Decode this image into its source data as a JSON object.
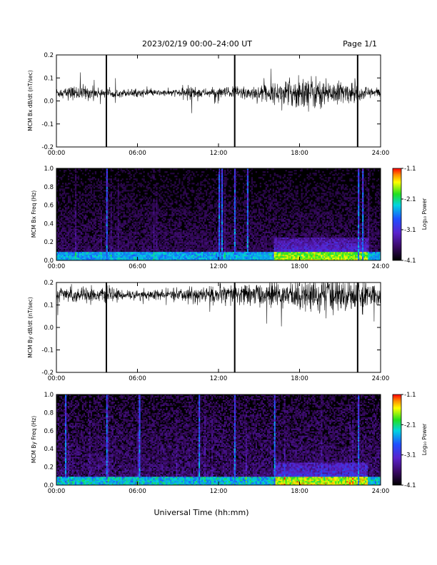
{
  "header": {
    "title": "2023/02/19  00:00–24:00 UT",
    "page": "Page 1/1"
  },
  "x_axis_title": "Universal Time (hh:mm)",
  "colorbar": {
    "label": "Log₁₀ Power",
    "ticks": [
      "-1.1",
      "-2.1",
      "-3.1",
      "-4.1"
    ],
    "range": [
      -4.1,
      -1.1
    ]
  },
  "chart_data": [
    {
      "type": "line",
      "ylabel": "MCM Bx dB/dt (nT/sec)",
      "x_ticks": [
        "00:00",
        "06:00",
        "12:00",
        "18:00",
        "24:00"
      ],
      "y_ticks": [
        "0.2",
        "0.1",
        "0.0",
        "-0.1",
        "-0.2"
      ],
      "xlim": [
        0,
        24
      ],
      "ylim": [
        -0.2,
        0.2
      ],
      "baseline": 0.035,
      "spikes_hours": [
        3.7,
        13.2,
        22.3
      ],
      "activity": [
        {
          "hour": 0,
          "amplitude": 0.02
        },
        {
          "hour": 1,
          "amplitude": 0.025
        },
        {
          "hour": 2,
          "amplitude": 0.03
        },
        {
          "hour": 3,
          "amplitude": 0.02
        },
        {
          "hour": 4,
          "amplitude": 0.015
        },
        {
          "hour": 5,
          "amplitude": 0.015
        },
        {
          "hour": 6,
          "amplitude": 0.015
        },
        {
          "hour": 7,
          "amplitude": 0.012
        },
        {
          "hour": 8,
          "amplitude": 0.012
        },
        {
          "hour": 9,
          "amplitude": 0.015
        },
        {
          "hour": 10,
          "amplitude": 0.03
        },
        {
          "hour": 11,
          "amplitude": 0.015
        },
        {
          "hour": 12,
          "amplitude": 0.02
        },
        {
          "hour": 13,
          "amplitude": 0.025
        },
        {
          "hour": 14,
          "amplitude": 0.03
        },
        {
          "hour": 15,
          "amplitude": 0.03
        },
        {
          "hour": 16,
          "amplitude": 0.035
        },
        {
          "hour": 17,
          "amplitude": 0.045
        },
        {
          "hour": 18,
          "amplitude": 0.07
        },
        {
          "hour": 19,
          "amplitude": 0.065
        },
        {
          "hour": 20,
          "amplitude": 0.05
        },
        {
          "hour": 21,
          "amplitude": 0.045
        },
        {
          "hour": 22,
          "amplitude": 0.035
        },
        {
          "hour": 23,
          "amplitude": 0.025
        },
        {
          "hour": 24,
          "amplitude": 0.02
        }
      ]
    },
    {
      "type": "heatmap",
      "ylabel": "MCM Bx Freq (Hz)",
      "x_ticks": [
        "00:00",
        "06:00",
        "12:00",
        "18:00",
        "24:00"
      ],
      "y_ticks": [
        "1.0",
        "0.8",
        "0.6",
        "0.4",
        "0.2",
        "0.0"
      ],
      "xlim": [
        0,
        24
      ],
      "ylim": [
        0,
        1.0
      ],
      "zlim": [
        -4.1,
        -1.1
      ],
      "bright_lines_hours": [
        3.7,
        12.0,
        12.2,
        13.2,
        14.1,
        22.3,
        22.6
      ],
      "activity_level": 0.45
    },
    {
      "type": "line",
      "ylabel": "MCM By dB/dt (nT/sec)",
      "x_ticks": [
        "00:00",
        "06:00",
        "12:00",
        "18:00",
        "24:00"
      ],
      "y_ticks": [
        "0.2",
        "0.1",
        "0.0",
        "-0.1",
        "-0.2"
      ],
      "xlim": [
        0,
        24
      ],
      "ylim": [
        -0.2,
        0.2
      ],
      "baseline": 0.145,
      "spikes_hours": [
        3.7,
        13.2,
        22.3
      ],
      "activity": [
        {
          "hour": 0,
          "amplitude": 0.03
        },
        {
          "hour": 1,
          "amplitude": 0.03
        },
        {
          "hour": 2,
          "amplitude": 0.035
        },
        {
          "hour": 3,
          "amplitude": 0.025
        },
        {
          "hour": 4,
          "amplitude": 0.025
        },
        {
          "hour": 5,
          "amplitude": 0.02
        },
        {
          "hour": 6,
          "amplitude": 0.02
        },
        {
          "hour": 7,
          "amplitude": 0.02
        },
        {
          "hour": 8,
          "amplitude": 0.02
        },
        {
          "hour": 9,
          "amplitude": 0.025
        },
        {
          "hour": 10,
          "amplitude": 0.03
        },
        {
          "hour": 11,
          "amplitude": 0.035
        },
        {
          "hour": 12,
          "amplitude": 0.035
        },
        {
          "hour": 13,
          "amplitude": 0.04
        },
        {
          "hour": 14,
          "amplitude": 0.04
        },
        {
          "hour": 15,
          "amplitude": 0.045
        },
        {
          "hour": 16,
          "amplitude": 0.05
        },
        {
          "hour": 17,
          "amplitude": 0.05
        },
        {
          "hour": 18,
          "amplitude": 0.06
        },
        {
          "hour": 19,
          "amplitude": 0.065
        },
        {
          "hour": 20,
          "amplitude": 0.07
        },
        {
          "hour": 21,
          "amplitude": 0.07
        },
        {
          "hour": 22,
          "amplitude": 0.06
        },
        {
          "hour": 23,
          "amplitude": 0.05
        },
        {
          "hour": 24,
          "amplitude": 0.04
        }
      ]
    },
    {
      "type": "heatmap",
      "ylabel": "MCM By Freq (Hz)",
      "x_ticks": [
        "00:00",
        "06:00",
        "12:00",
        "18:00",
        "24:00"
      ],
      "y_ticks": [
        "1.0",
        "0.8",
        "0.6",
        "0.4",
        "0.2",
        "0.0"
      ],
      "xlim": [
        0,
        24
      ],
      "ylim": [
        0,
        1.0
      ],
      "zlim": [
        -4.1,
        -1.1
      ],
      "bright_lines_hours": [
        0.6,
        3.7,
        6.1,
        10.5,
        13.2,
        16.1,
        22.3
      ],
      "activity_level": 0.65
    }
  ]
}
